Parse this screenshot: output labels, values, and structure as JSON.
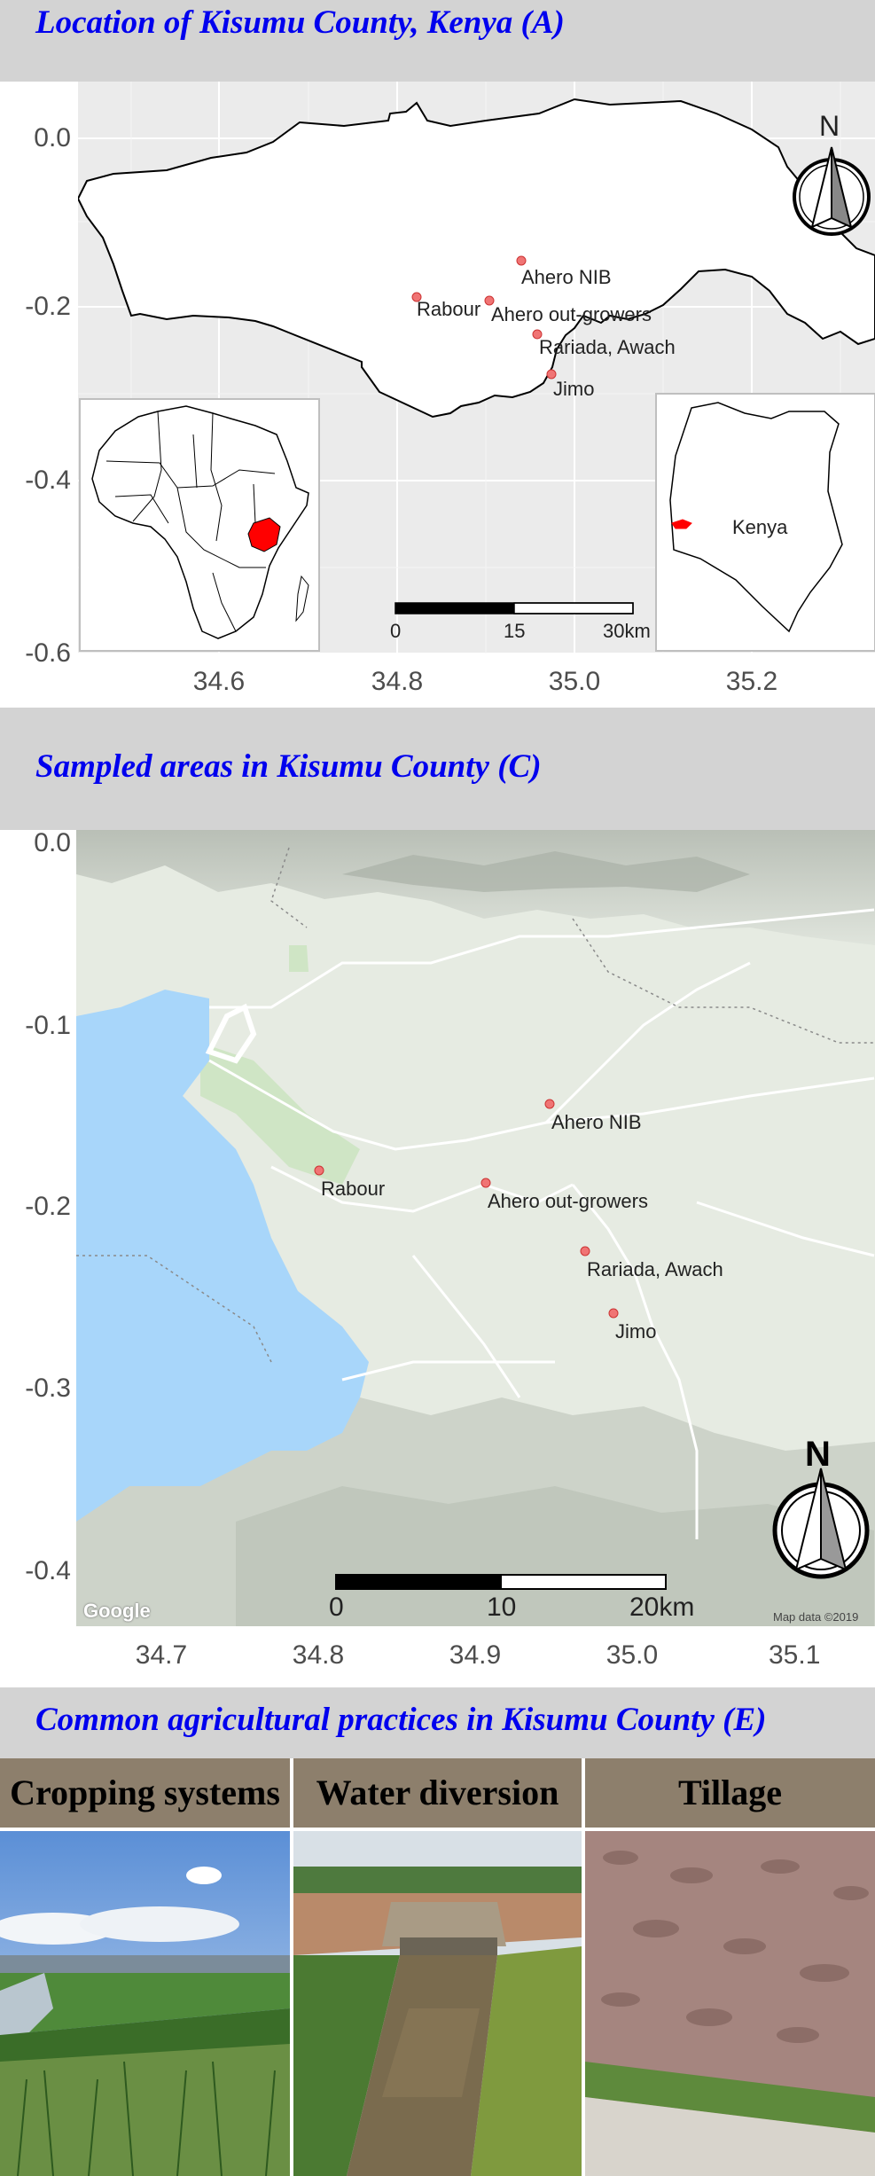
{
  "panel_a": {
    "title": "Location of Kisumu County, Kenya (A)",
    "y_ticks": [
      "0.0",
      "-0.2",
      "-0.4",
      "-0.6"
    ],
    "x_ticks": [
      "34.6",
      "34.8",
      "35.0",
      "35.2"
    ],
    "sites": [
      "Ahero NIB",
      "Rabour",
      "Ahero out-growers",
      "Rariada, Awach",
      "Jimo"
    ],
    "scalebar": [
      "0",
      "15",
      "30km"
    ],
    "north_label": "N",
    "inset_kenya_label": "Kenya",
    "highlight_color": "#ff0000"
  },
  "panel_c": {
    "title": "Sampled areas in Kisumu County (C)",
    "y_ticks": [
      "0.0",
      "-0.1",
      "-0.2",
      "-0.3",
      "-0.4"
    ],
    "x_ticks": [
      "34.7",
      "34.8",
      "34.9",
      "35.0",
      "35.1"
    ],
    "sites": [
      "Ahero NIB",
      "Rabour",
      "Ahero out-growers",
      "Rariada, Awach",
      "Jimo"
    ],
    "scalebar": [
      "0",
      "10",
      "20km"
    ],
    "north_label": "N",
    "google_logo": "Google",
    "attribution": "Map data ©2019",
    "lake_color": "#a8d6fa"
  },
  "panel_e": {
    "title": "Common agricultural practices in Kisumu County (E)",
    "photos": [
      "Cropping systems",
      "Water diversion",
      "Tillage"
    ]
  }
}
